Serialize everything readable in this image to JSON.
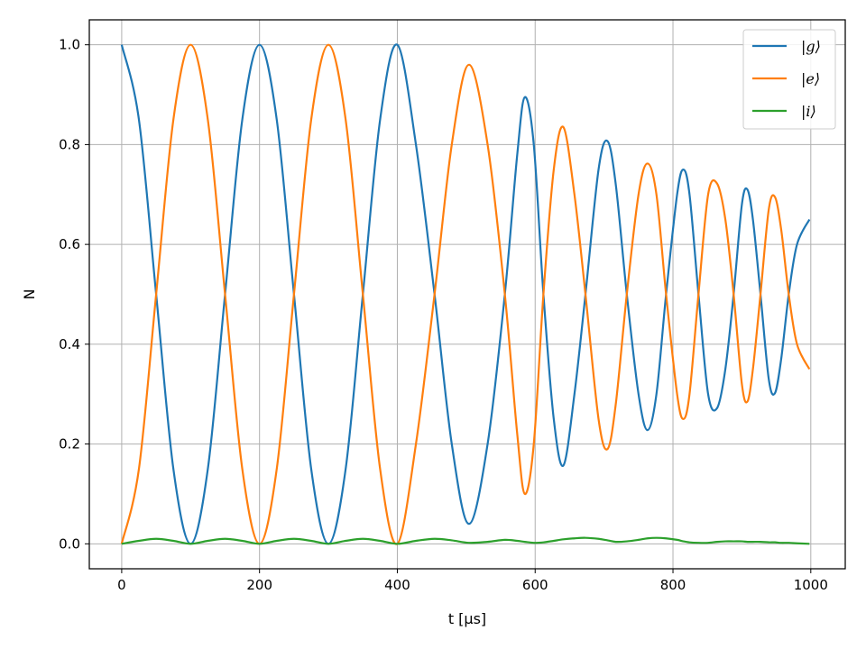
{
  "chart_data": {
    "type": "line",
    "title": "",
    "xlabel": "t [μs]",
    "ylabel": "N",
    "xlim": [
      -47,
      1050
    ],
    "ylim": [
      -0.05,
      1.05
    ],
    "xticks": [
      0,
      200,
      400,
      600,
      800,
      1000
    ],
    "xtick_labels": [
      "0",
      "200",
      "400",
      "600",
      "800",
      "1000"
    ],
    "yticks": [
      0.0,
      0.2,
      0.4,
      0.6,
      0.8,
      1.0
    ],
    "ytick_labels": [
      "0.0",
      "0.2",
      "0.4",
      "0.6",
      "0.8",
      "1.0"
    ],
    "grid": true,
    "legend_position": "top-right",
    "series": [
      {
        "name": "|g⟩",
        "color": "#1f77b4",
        "points": [
          [
            0,
            1.0
          ],
          [
            25,
            0.85
          ],
          [
            50,
            0.5
          ],
          [
            75,
            0.15
          ],
          [
            100,
            0.0
          ],
          [
            125,
            0.15
          ],
          [
            150,
            0.5
          ],
          [
            175,
            0.85
          ],
          [
            200,
            1.0
          ],
          [
            225,
            0.85
          ],
          [
            250,
            0.5
          ],
          [
            275,
            0.15
          ],
          [
            300,
            0.0
          ],
          [
            325,
            0.15
          ],
          [
            350,
            0.5
          ],
          [
            375,
            0.85
          ],
          [
            400,
            1.0
          ],
          [
            427,
            0.8
          ],
          [
            454,
            0.5
          ],
          [
            479,
            0.2
          ],
          [
            504,
            0.04
          ],
          [
            531,
            0.2
          ],
          [
            556,
            0.5
          ],
          [
            574,
            0.78
          ],
          [
            585,
            0.895
          ],
          [
            598,
            0.8
          ],
          [
            612,
            0.5
          ],
          [
            627,
            0.25
          ],
          [
            641,
            0.157
          ],
          [
            657,
            0.3
          ],
          [
            673,
            0.5
          ],
          [
            692,
            0.75
          ],
          [
            705,
            0.807
          ],
          [
            717,
            0.72
          ],
          [
            733,
            0.5
          ],
          [
            750,
            0.3
          ],
          [
            763,
            0.228
          ],
          [
            776,
            0.3
          ],
          [
            790,
            0.5
          ],
          [
            806,
            0.7
          ],
          [
            815,
            0.75
          ],
          [
            824,
            0.7
          ],
          [
            837,
            0.5
          ],
          [
            851,
            0.3
          ],
          [
            864,
            0.272
          ],
          [
            876,
            0.35
          ],
          [
            888,
            0.5
          ],
          [
            900,
            0.68
          ],
          [
            908,
            0.71
          ],
          [
            916,
            0.65
          ],
          [
            927,
            0.5
          ],
          [
            939,
            0.33
          ],
          [
            948,
            0.302
          ],
          [
            957,
            0.37
          ],
          [
            968,
            0.5
          ],
          [
            980,
            0.6
          ],
          [
            998,
            0.65
          ]
        ]
      },
      {
        "name": "|e⟩",
        "color": "#ff7f0e",
        "points": [
          [
            0,
            0.0
          ],
          [
            25,
            0.15
          ],
          [
            50,
            0.5
          ],
          [
            75,
            0.85
          ],
          [
            100,
            1.0
          ],
          [
            125,
            0.85
          ],
          [
            150,
            0.5
          ],
          [
            175,
            0.15
          ],
          [
            200,
            0.0
          ],
          [
            225,
            0.15
          ],
          [
            250,
            0.5
          ],
          [
            275,
            0.85
          ],
          [
            300,
            1.0
          ],
          [
            325,
            0.85
          ],
          [
            350,
            0.5
          ],
          [
            375,
            0.15
          ],
          [
            400,
            0.0
          ],
          [
            427,
            0.2
          ],
          [
            454,
            0.5
          ],
          [
            479,
            0.8
          ],
          [
            504,
            0.96
          ],
          [
            531,
            0.8
          ],
          [
            556,
            0.5
          ],
          [
            574,
            0.22
          ],
          [
            585,
            0.1
          ],
          [
            598,
            0.2
          ],
          [
            612,
            0.5
          ],
          [
            627,
            0.75
          ],
          [
            641,
            0.835
          ],
          [
            657,
            0.7
          ],
          [
            673,
            0.5
          ],
          [
            692,
            0.25
          ],
          [
            705,
            0.19
          ],
          [
            717,
            0.28
          ],
          [
            733,
            0.5
          ],
          [
            750,
            0.7
          ],
          [
            763,
            0.762
          ],
          [
            776,
            0.7
          ],
          [
            790,
            0.5
          ],
          [
            806,
            0.3
          ],
          [
            815,
            0.25
          ],
          [
            824,
            0.3
          ],
          [
            837,
            0.5
          ],
          [
            851,
            0.7
          ],
          [
            864,
            0.722
          ],
          [
            876,
            0.65
          ],
          [
            888,
            0.5
          ],
          [
            900,
            0.32
          ],
          [
            908,
            0.285
          ],
          [
            916,
            0.35
          ],
          [
            927,
            0.5
          ],
          [
            939,
            0.67
          ],
          [
            948,
            0.695
          ],
          [
            957,
            0.63
          ],
          [
            968,
            0.5
          ],
          [
            980,
            0.4
          ],
          [
            998,
            0.35
          ]
        ]
      },
      {
        "name": "|i⟩",
        "color": "#2ca02c",
        "points": [
          [
            0,
            0.0
          ],
          [
            25,
            0.006
          ],
          [
            50,
            0.01
          ],
          [
            75,
            0.006
          ],
          [
            100,
            0.0
          ],
          [
            125,
            0.006
          ],
          [
            150,
            0.01
          ],
          [
            175,
            0.006
          ],
          [
            200,
            0.0
          ],
          [
            225,
            0.006
          ],
          [
            250,
            0.01
          ],
          [
            275,
            0.006
          ],
          [
            300,
            0.0
          ],
          [
            325,
            0.006
          ],
          [
            350,
            0.01
          ],
          [
            375,
            0.006
          ],
          [
            400,
            0.0
          ],
          [
            427,
            0.006
          ],
          [
            454,
            0.01
          ],
          [
            479,
            0.007
          ],
          [
            504,
            0.002
          ],
          [
            531,
            0.004
          ],
          [
            556,
            0.008
          ],
          [
            574,
            0.006
          ],
          [
            585,
            0.004
          ],
          [
            598,
            0.002
          ],
          [
            612,
            0.003
          ],
          [
            627,
            0.006
          ],
          [
            641,
            0.009
          ],
          [
            657,
            0.011
          ],
          [
            673,
            0.012
          ],
          [
            692,
            0.01
          ],
          [
            705,
            0.007
          ],
          [
            717,
            0.004
          ],
          [
            733,
            0.005
          ],
          [
            750,
            0.008
          ],
          [
            763,
            0.011
          ],
          [
            776,
            0.012
          ],
          [
            790,
            0.011
          ],
          [
            806,
            0.008
          ],
          [
            815,
            0.005
          ],
          [
            824,
            0.003
          ],
          [
            837,
            0.002
          ],
          [
            851,
            0.002
          ],
          [
            864,
            0.004
          ],
          [
            876,
            0.005
          ],
          [
            888,
            0.005
          ],
          [
            900,
            0.005
          ],
          [
            908,
            0.004
          ],
          [
            916,
            0.004
          ],
          [
            927,
            0.004
          ],
          [
            939,
            0.003
          ],
          [
            948,
            0.003
          ],
          [
            957,
            0.002
          ],
          [
            968,
            0.002
          ],
          [
            980,
            0.001
          ],
          [
            998,
            0.0
          ]
        ]
      }
    ]
  }
}
